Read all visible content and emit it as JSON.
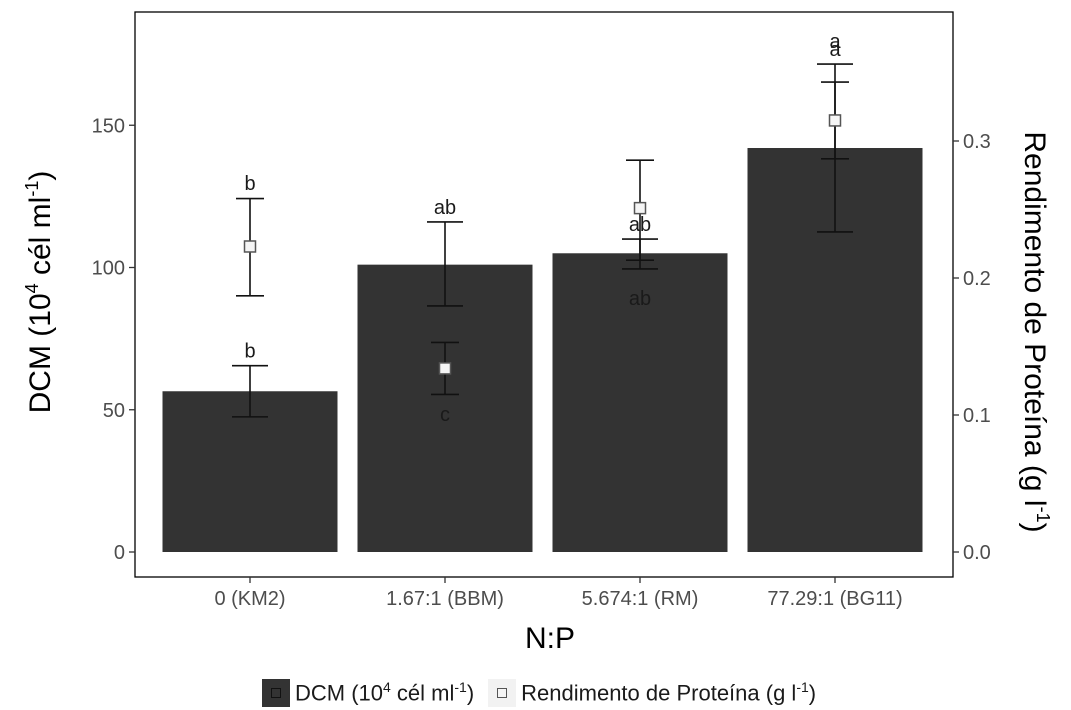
{
  "chart_data": {
    "type": "bar",
    "xlabel": "N:P",
    "ylabel_main": "DCM (10",
    "ylabel_sup": "4",
    "ylabel_mid": " cél ml",
    "ylabel_sup2": "-1",
    "ylabel_end": ")",
    "y2label_main": "Rendimento de Proteína (g l",
    "y2label_sup": "-1",
    "y2label_end": ")",
    "categories": [
      "0 (KM2)",
      "1.67:1 (BBM)",
      "5.674:1 (RM)",
      "77.29:1 (BG11)"
    ],
    "ylim": [
      0,
      193
    ],
    "y2lim": [
      0,
      0.41
    ],
    "yticks": [
      0,
      50,
      100,
      150
    ],
    "y2ticks": [
      "0.0",
      "0.1",
      "0.2",
      "0.3"
    ],
    "series": [
      {
        "name": "DCM",
        "axis": "left",
        "kind": "bar",
        "color": "#333333",
        "values": [
          56.5,
          101,
          105,
          142
        ],
        "err_low": [
          47.5,
          86.5,
          99.5,
          112.5
        ],
        "err_high": [
          65.5,
          116,
          110,
          171.5
        ],
        "labels": [
          "b",
          "ab",
          "ab",
          "a"
        ]
      },
      {
        "name": "Rendimento de Proteína",
        "axis": "right",
        "kind": "point",
        "color": "#555555",
        "values": [
          0.223,
          0.134,
          0.251,
          0.315
        ],
        "err_low": [
          0.187,
          0.115,
          0.213,
          0.287
        ],
        "err_high": [
          0.258,
          0.153,
          0.286,
          0.343
        ],
        "labels": [
          "b",
          "c",
          "ab",
          "a"
        ]
      }
    ],
    "grid": false,
    "legend": "bottom"
  },
  "legend": {
    "item1_main": "DCM (10",
    "item1_sup": "4",
    "item1_mid": " cél ml",
    "item1_sup2": "-1",
    "item1_end": ")",
    "item2_main": "Rendimento de Proteína  (g l",
    "item2_sup": "-1",
    "item2_end": ")"
  }
}
